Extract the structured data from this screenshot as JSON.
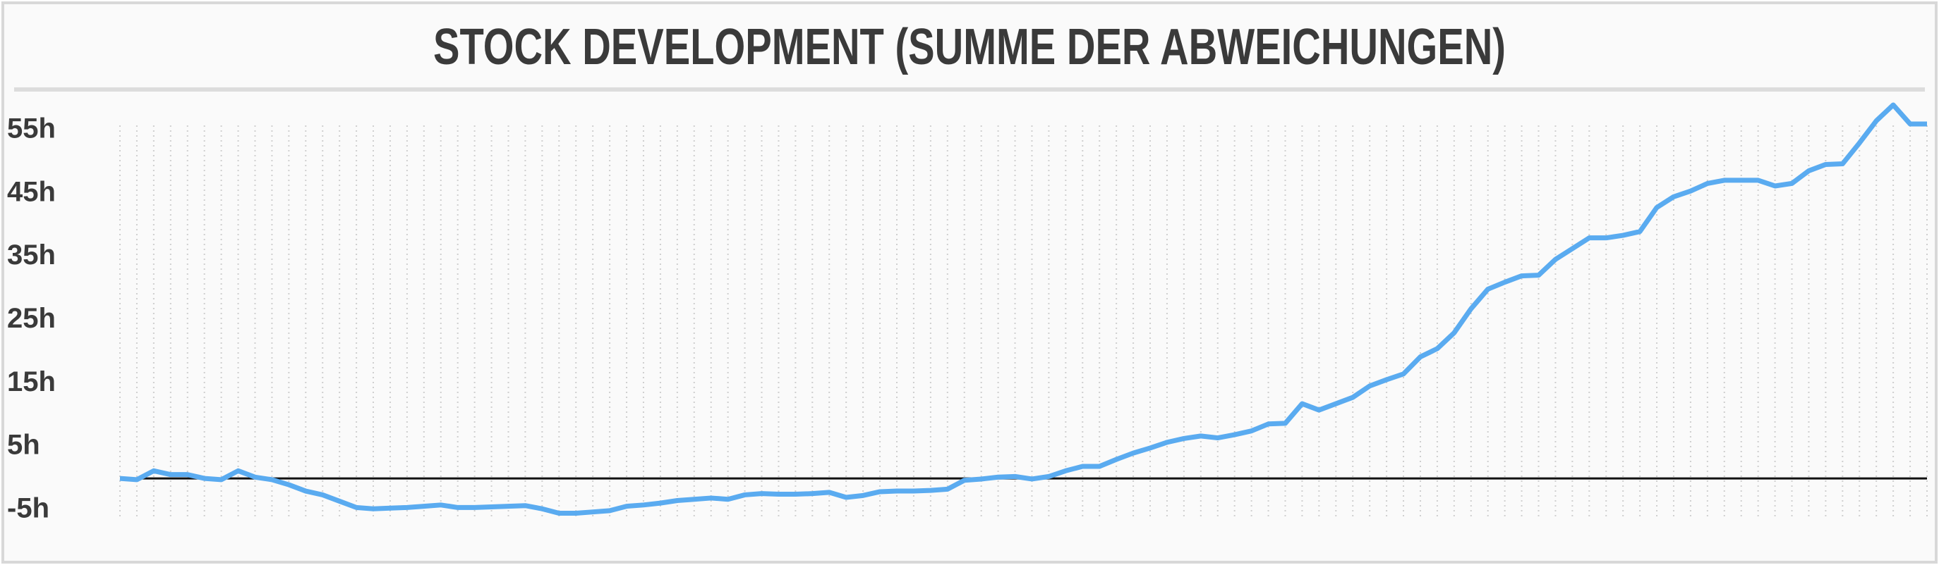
{
  "chart_data": {
    "type": "line",
    "title": "STOCK DEVELOPMENT (SUMME DER ABWEICHUNGEN)",
    "categories": [
      null,
      null,
      null,
      null,
      null,
      null,
      null,
      null,
      null,
      null,
      null,
      null,
      null,
      null,
      null,
      null,
      null,
      null,
      null,
      null,
      null,
      null,
      null,
      null,
      null,
      null,
      null,
      null,
      null,
      null,
      null,
      null,
      null,
      null,
      null,
      null,
      null,
      null,
      null,
      null,
      null,
      null,
      null,
      null,
      null,
      null,
      null,
      null,
      null,
      null,
      null,
      null,
      null,
      null,
      null,
      null,
      null,
      null,
      null,
      null,
      null,
      null,
      null,
      null,
      null,
      null,
      null,
      null,
      null,
      null,
      null,
      null,
      null,
      null,
      null,
      null,
      null,
      null,
      null,
      null,
      null,
      null,
      null,
      null,
      null,
      null,
      null,
      null,
      null,
      null,
      null,
      null,
      null,
      null,
      null,
      null,
      null,
      null,
      null,
      null,
      null,
      null,
      null,
      null,
      null,
      null,
      null,
      null
    ],
    "values": [
      0,
      -0.2,
      1.2,
      0.6,
      0.6,
      0,
      -0.2,
      1.2,
      0.2,
      -0.2,
      -1,
      -2,
      -2.6,
      -3.6,
      -4.6,
      -4.8,
      -4.7,
      -4.6,
      -4.4,
      -4.2,
      -4.6,
      -4.6,
      -4.5,
      -4.4,
      -4.3,
      -4.8,
      -5.5,
      -5.5,
      -5.3,
      -5.1,
      -4.4,
      -4.2,
      -3.9,
      -3.5,
      -3.3,
      -3.1,
      -3.3,
      -2.6,
      -2.4,
      -2.5,
      -2.5,
      -2.4,
      -2.2,
      -3,
      -2.7,
      -2.1,
      -2,
      -2,
      -1.9,
      -1.7,
      -0.3,
      -0.1,
      0.2,
      0.3,
      -0.1,
      0.3,
      1.2,
      1.9,
      1.9,
      3,
      4,
      4.8,
      5.7,
      6.3,
      6.7,
      6.4,
      6.9,
      7.5,
      8.6,
      8.7,
      11.8,
      10.8,
      11.8,
      12.8,
      14.6,
      15.6,
      16.5,
      19.2,
      20.5,
      23,
      26.8,
      29.9,
      31,
      32,
      32.1,
      34.6,
      36.3,
      38,
      38,
      38.4,
      39,
      42.8,
      44.5,
      45.4,
      46.6,
      47.1,
      47.1,
      47.1,
      46.2,
      46.6,
      48.6,
      49.6,
      49.7,
      53,
      56.5,
      59,
      56,
      56
    ],
    "color": "#5aabf0",
    "ylim": [
      -5,
      60
    ],
    "yticks": [
      {
        "value": -5,
        "label": "-5h"
      },
      {
        "value": 5,
        "label": "5h"
      },
      {
        "value": 15,
        "label": "15h"
      },
      {
        "value": 25,
        "label": "25h"
      },
      {
        "value": 35,
        "label": "35h"
      },
      {
        "value": 45,
        "label": "45h"
      },
      {
        "value": 55,
        "label": "55h"
      }
    ],
    "zero_line": true,
    "grid": true
  }
}
